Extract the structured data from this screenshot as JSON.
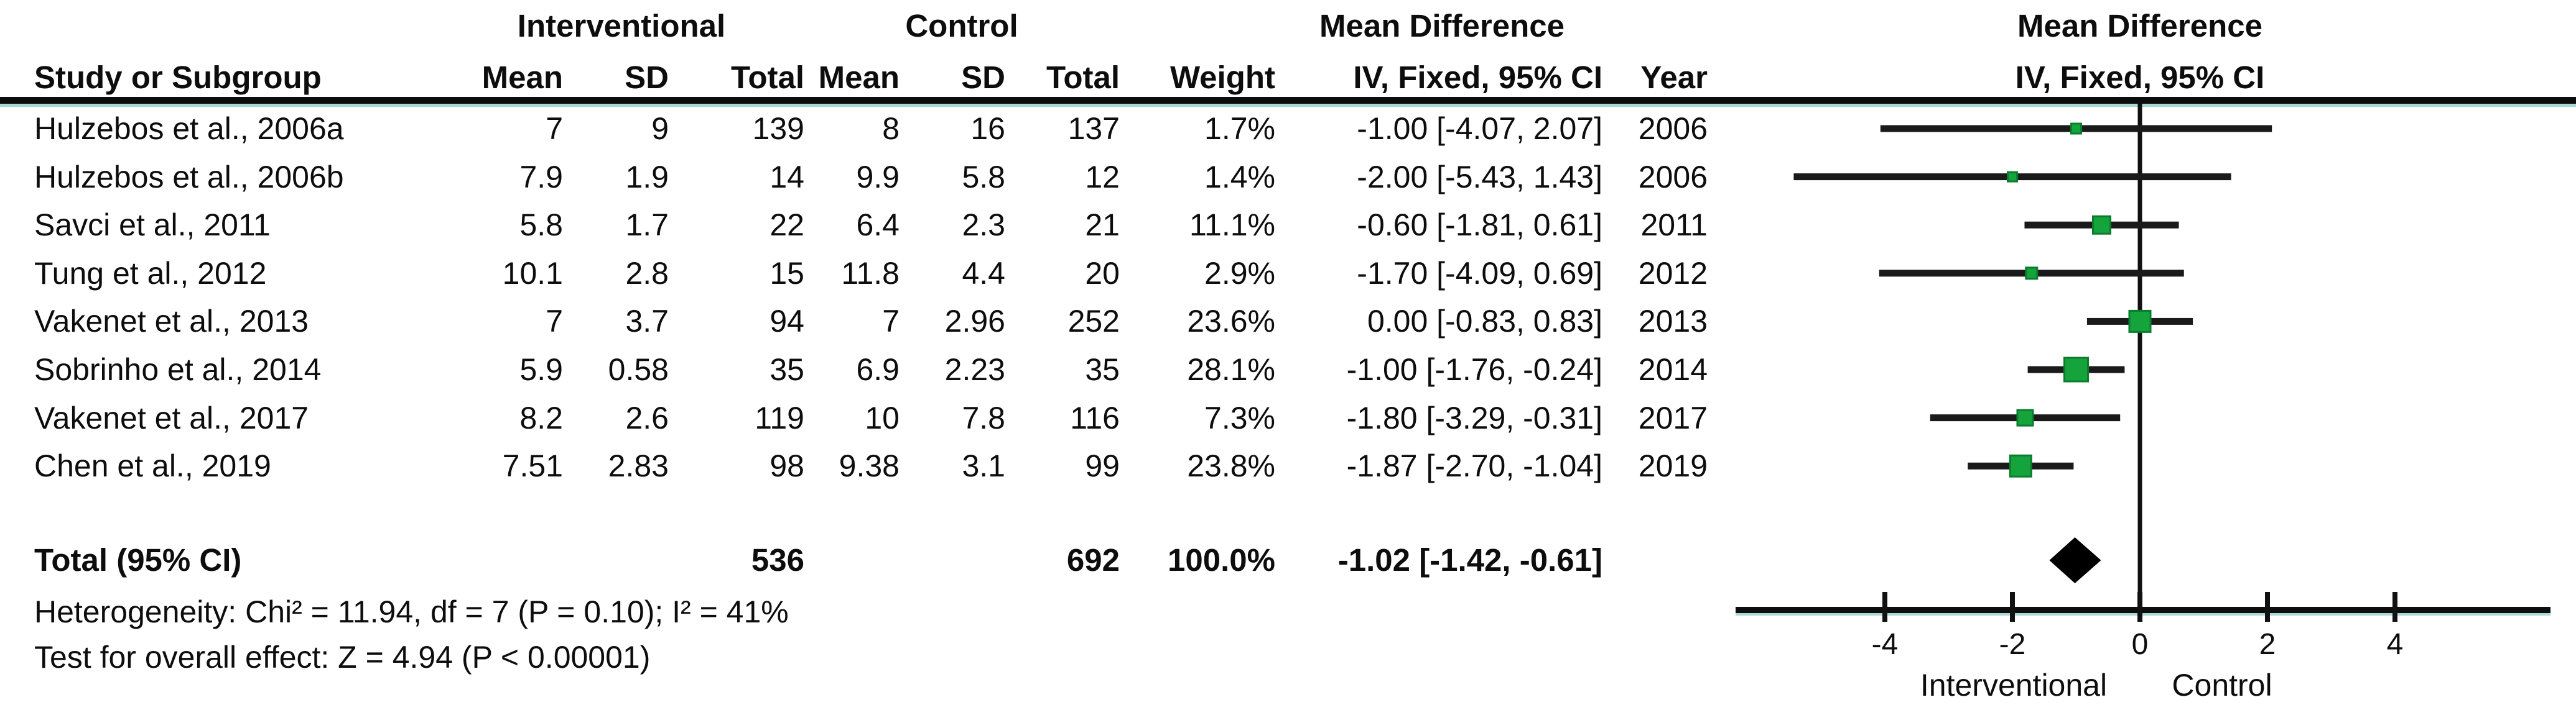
{
  "header": {
    "group1": "Interventional",
    "group2": "Control",
    "effect_col_title": "Mean Difference",
    "effect_method": "IV, Fixed, 95% CI",
    "plot_title": "Mean Difference",
    "plot_subtitle": "IV, Fixed, 95% CI",
    "col_study": "Study or Subgroup",
    "col_mean": "Mean",
    "col_sd": "SD",
    "col_total": "Total",
    "col_weight": "Weight",
    "col_year": "Year"
  },
  "stats": {
    "heterogeneity": "Heterogeneity: Chi² = 11.94, df = 7 (P = 0.10); I² = 41%",
    "overall_effect": "Test for overall effect: Z = 4.94 (P < 0.00001)"
  },
  "chart_data": {
    "type": "forest",
    "title": "Mean Difference",
    "method": "IV, Fixed, 95% CI",
    "effect_measure": "Mean Difference",
    "model": "Fixed",
    "studies": [
      {
        "study": "Hulzebos et al., 2006a",
        "i_mean": "7",
        "i_sd": "9",
        "i_total": "139",
        "c_mean": "8",
        "c_sd": "16",
        "c_total": "137",
        "weight": "1.7%",
        "ci_label": "-1.00 [-4.07, 2.07]",
        "year": "2006",
        "md": -1.0,
        "lower": -4.07,
        "upper": 2.07,
        "marker_px": 16
      },
      {
        "study": "Hulzebos et al., 2006b",
        "i_mean": "7.9",
        "i_sd": "1.9",
        "i_total": "14",
        "c_mean": "9.9",
        "c_sd": "5.8",
        "c_total": "12",
        "weight": "1.4%",
        "ci_label": "-2.00 [-5.43, 1.43]",
        "year": "2006",
        "md": -2.0,
        "lower": -5.43,
        "upper": 1.43,
        "marker_px": 15
      },
      {
        "study": "Savci et al., 2011",
        "i_mean": "5.8",
        "i_sd": "1.7",
        "i_total": "22",
        "c_mean": "6.4",
        "c_sd": "2.3",
        "c_total": "21",
        "weight": "11.1%",
        "ci_label": "-0.60 [-1.81, 0.61]",
        "year": "2011",
        "md": -0.6,
        "lower": -1.81,
        "upper": 0.61,
        "marker_px": 28
      },
      {
        "study": "Tung et al., 2012",
        "i_mean": "10.1",
        "i_sd": "2.8",
        "i_total": "15",
        "c_mean": "11.8",
        "c_sd": "4.4",
        "c_total": "20",
        "weight": "2.9%",
        "ci_label": "-1.70 [-4.09, 0.69]",
        "year": "2012",
        "md": -1.7,
        "lower": -4.09,
        "upper": 0.69,
        "marker_px": 18
      },
      {
        "study": "Vakenet et al., 2013",
        "i_mean": "7",
        "i_sd": "3.7",
        "i_total": "94",
        "c_mean": "7",
        "c_sd": "2.96",
        "c_total": "252",
        "weight": "23.6%",
        "ci_label": "0.00 [-0.83, 0.83]",
        "year": "2013",
        "md": 0.0,
        "lower": -0.83,
        "upper": 0.83,
        "marker_px": 34
      },
      {
        "study": "Sobrinho et al., 2014",
        "i_mean": "5.9",
        "i_sd": "0.58",
        "i_total": "35",
        "c_mean": "6.9",
        "c_sd": "2.23",
        "c_total": "35",
        "weight": "28.1%",
        "ci_label": "-1.00 [-1.76, -0.24]",
        "year": "2014",
        "md": -1.0,
        "lower": -1.76,
        "upper": -0.24,
        "marker_px": 38
      },
      {
        "study": "Vakenet et al., 2017",
        "i_mean": "8.2",
        "i_sd": "2.6",
        "i_total": "119",
        "c_mean": "10",
        "c_sd": "7.8",
        "c_total": "116",
        "weight": "7.3%",
        "ci_label": "-1.80 [-3.29, -0.31]",
        "year": "2017",
        "md": -1.8,
        "lower": -3.29,
        "upper": -0.31,
        "marker_px": 25
      },
      {
        "study": "Chen et al., 2019",
        "i_mean": "7.51",
        "i_sd": "2.83",
        "i_total": "98",
        "c_mean": "9.38",
        "c_sd": "3.1",
        "c_total": "99",
        "weight": "23.8%",
        "ci_label": "-1.87 [-2.70, -1.04]",
        "year": "2019",
        "md": -1.87,
        "lower": -2.7,
        "upper": -1.04,
        "marker_px": 34
      }
    ],
    "total": {
      "label": "Total (95% CI)",
      "i_total": "536",
      "c_total": "692",
      "weight": "100.0%",
      "ci_label": "-1.02 [-1.42, -0.61]",
      "md": -1.02,
      "lower": -1.42,
      "upper": -0.61
    },
    "x_ticks": [
      "-4",
      "-2",
      "0",
      "2",
      "4"
    ],
    "x_tick_values": [
      -4,
      -2,
      0,
      2,
      4
    ],
    "xlim_drawn": [
      -6.3,
      6.4
    ],
    "axis_left_label": "Interventional",
    "axis_right_label": "Control",
    "marker_color": "#15A33C",
    "marker_border_color": "#0a7c2e",
    "line_color": "#1a1a1a",
    "diamond_color": "#000000",
    "grid": false
  }
}
